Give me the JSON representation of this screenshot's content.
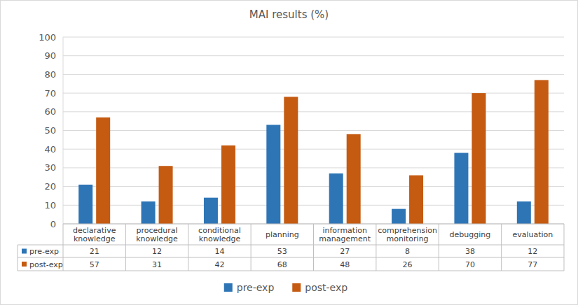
{
  "chart_data": {
    "type": "bar",
    "title": "MAI results (%)",
    "categories": [
      "declarative knowledge",
      "procedural knowledge",
      "conditional knowledge",
      "planning",
      "information management",
      "comprehension monitoring",
      "debugging",
      "evaluation"
    ],
    "series": [
      {
        "name": "pre-exp",
        "color": "#2e75b6",
        "values": [
          21,
          12,
          14,
          53,
          27,
          8,
          38,
          12
        ]
      },
      {
        "name": "post-exp",
        "color": "#c55a11",
        "values": [
          57,
          31,
          42,
          68,
          48,
          26,
          70,
          77
        ]
      }
    ],
    "ylim": [
      0,
      100
    ],
    "yticks": [
      0,
      10,
      20,
      30,
      40,
      50,
      60,
      70,
      80,
      90,
      100
    ],
    "grid": true,
    "legend": "bottom"
  }
}
